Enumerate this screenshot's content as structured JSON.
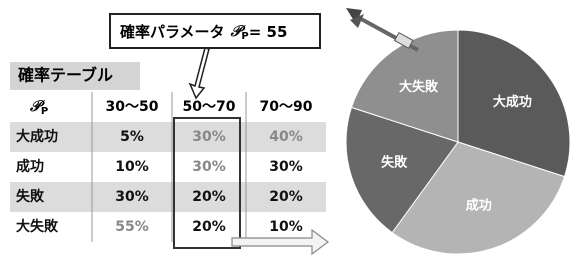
{
  "callout": {
    "text": "確率パラメータ",
    "symbol": "𝒫",
    "subscript": "P",
    "value": "= 55"
  },
  "table": {
    "title": "確率テーブル",
    "header_symbol": "𝒫",
    "header_subscript": "P",
    "columns": [
      "30～50",
      "50～70",
      "70～90"
    ],
    "rows": [
      [
        "大成功",
        "5%",
        "30%",
        "40%"
      ],
      [
        "成功",
        "10%",
        "30%",
        "30%"
      ],
      [
        "失敗",
        "30%",
        "20%",
        "20%"
      ],
      [
        "大失敗",
        "55%",
        "20%",
        "10%"
      ]
    ]
  },
  "chart_data": {
    "type": "pie",
    "categories": [
      "大成功",
      "成功",
      "失敗",
      "大失敗"
    ],
    "values": [
      30,
      30,
      20,
      20
    ],
    "colors": [
      "#5a5a5a",
      "#b4b4b4",
      "#686868",
      "#8f8f8f"
    ]
  }
}
